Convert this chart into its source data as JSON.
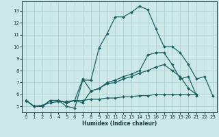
{
  "title": "",
  "xlabel": "Humidex (Indice chaleur)",
  "bg_color": "#cce8e8",
  "grid_color": "#aacccc",
  "line_color": "#1a6060",
  "xlim": [
    -0.5,
    23.5
  ],
  "ylim": [
    4.5,
    13.8
  ],
  "xticks": [
    0,
    1,
    2,
    3,
    4,
    5,
    6,
    7,
    8,
    9,
    10,
    11,
    12,
    13,
    14,
    15,
    16,
    17,
    18,
    19,
    20,
    21,
    22,
    23
  ],
  "yticks": [
    5,
    6,
    7,
    8,
    9,
    10,
    11,
    12,
    13
  ],
  "series": [
    {
      "x": [
        0,
        1,
        2,
        3,
        4,
        5,
        6,
        7,
        8,
        9,
        10,
        11,
        12,
        13,
        14,
        15,
        16,
        17,
        18,
        19,
        20,
        21,
        22,
        23
      ],
      "y": [
        5.5,
        5.0,
        5.0,
        5.5,
        5.5,
        5.0,
        4.85,
        7.2,
        7.2,
        9.9,
        11.1,
        12.5,
        12.5,
        12.9,
        13.4,
        13.1,
        11.5,
        10.0,
        10.0,
        9.5,
        8.5,
        7.3,
        7.5,
        5.9
      ]
    },
    {
      "x": [
        0,
        1,
        2,
        3,
        4,
        5,
        6,
        7,
        8,
        9,
        10,
        11,
        12,
        13,
        14,
        15,
        16,
        17,
        18,
        19,
        20,
        21
      ],
      "y": [
        5.5,
        5.0,
        5.0,
        5.5,
        5.5,
        5.3,
        5.5,
        5.3,
        6.3,
        6.5,
        7.0,
        7.2,
        7.5,
        7.7,
        8.0,
        9.3,
        9.5,
        9.5,
        8.5,
        7.3,
        7.5,
        5.9
      ]
    },
    {
      "x": [
        0,
        1,
        2,
        3,
        4,
        5,
        6,
        7,
        8,
        9,
        10,
        11,
        12,
        13,
        14,
        15,
        16,
        17,
        18,
        19,
        20,
        21
      ],
      "y": [
        5.5,
        5.0,
        5.0,
        5.5,
        5.5,
        5.3,
        5.5,
        7.3,
        6.3,
        6.5,
        6.9,
        7.0,
        7.3,
        7.5,
        7.8,
        8.0,
        8.3,
        8.5,
        8.0,
        7.5,
        6.5,
        6.0
      ]
    },
    {
      "x": [
        0,
        1,
        2,
        3,
        4,
        5,
        6,
        7,
        8,
        9,
        10,
        11,
        12,
        13,
        14,
        15,
        16,
        17,
        18,
        19,
        20,
        21
      ],
      "y": [
        5.5,
        5.0,
        5.1,
        5.3,
        5.4,
        5.4,
        5.5,
        5.5,
        5.6,
        5.6,
        5.7,
        5.7,
        5.8,
        5.8,
        5.9,
        5.9,
        6.0,
        6.0,
        6.0,
        6.0,
        6.0,
        6.0
      ]
    }
  ]
}
